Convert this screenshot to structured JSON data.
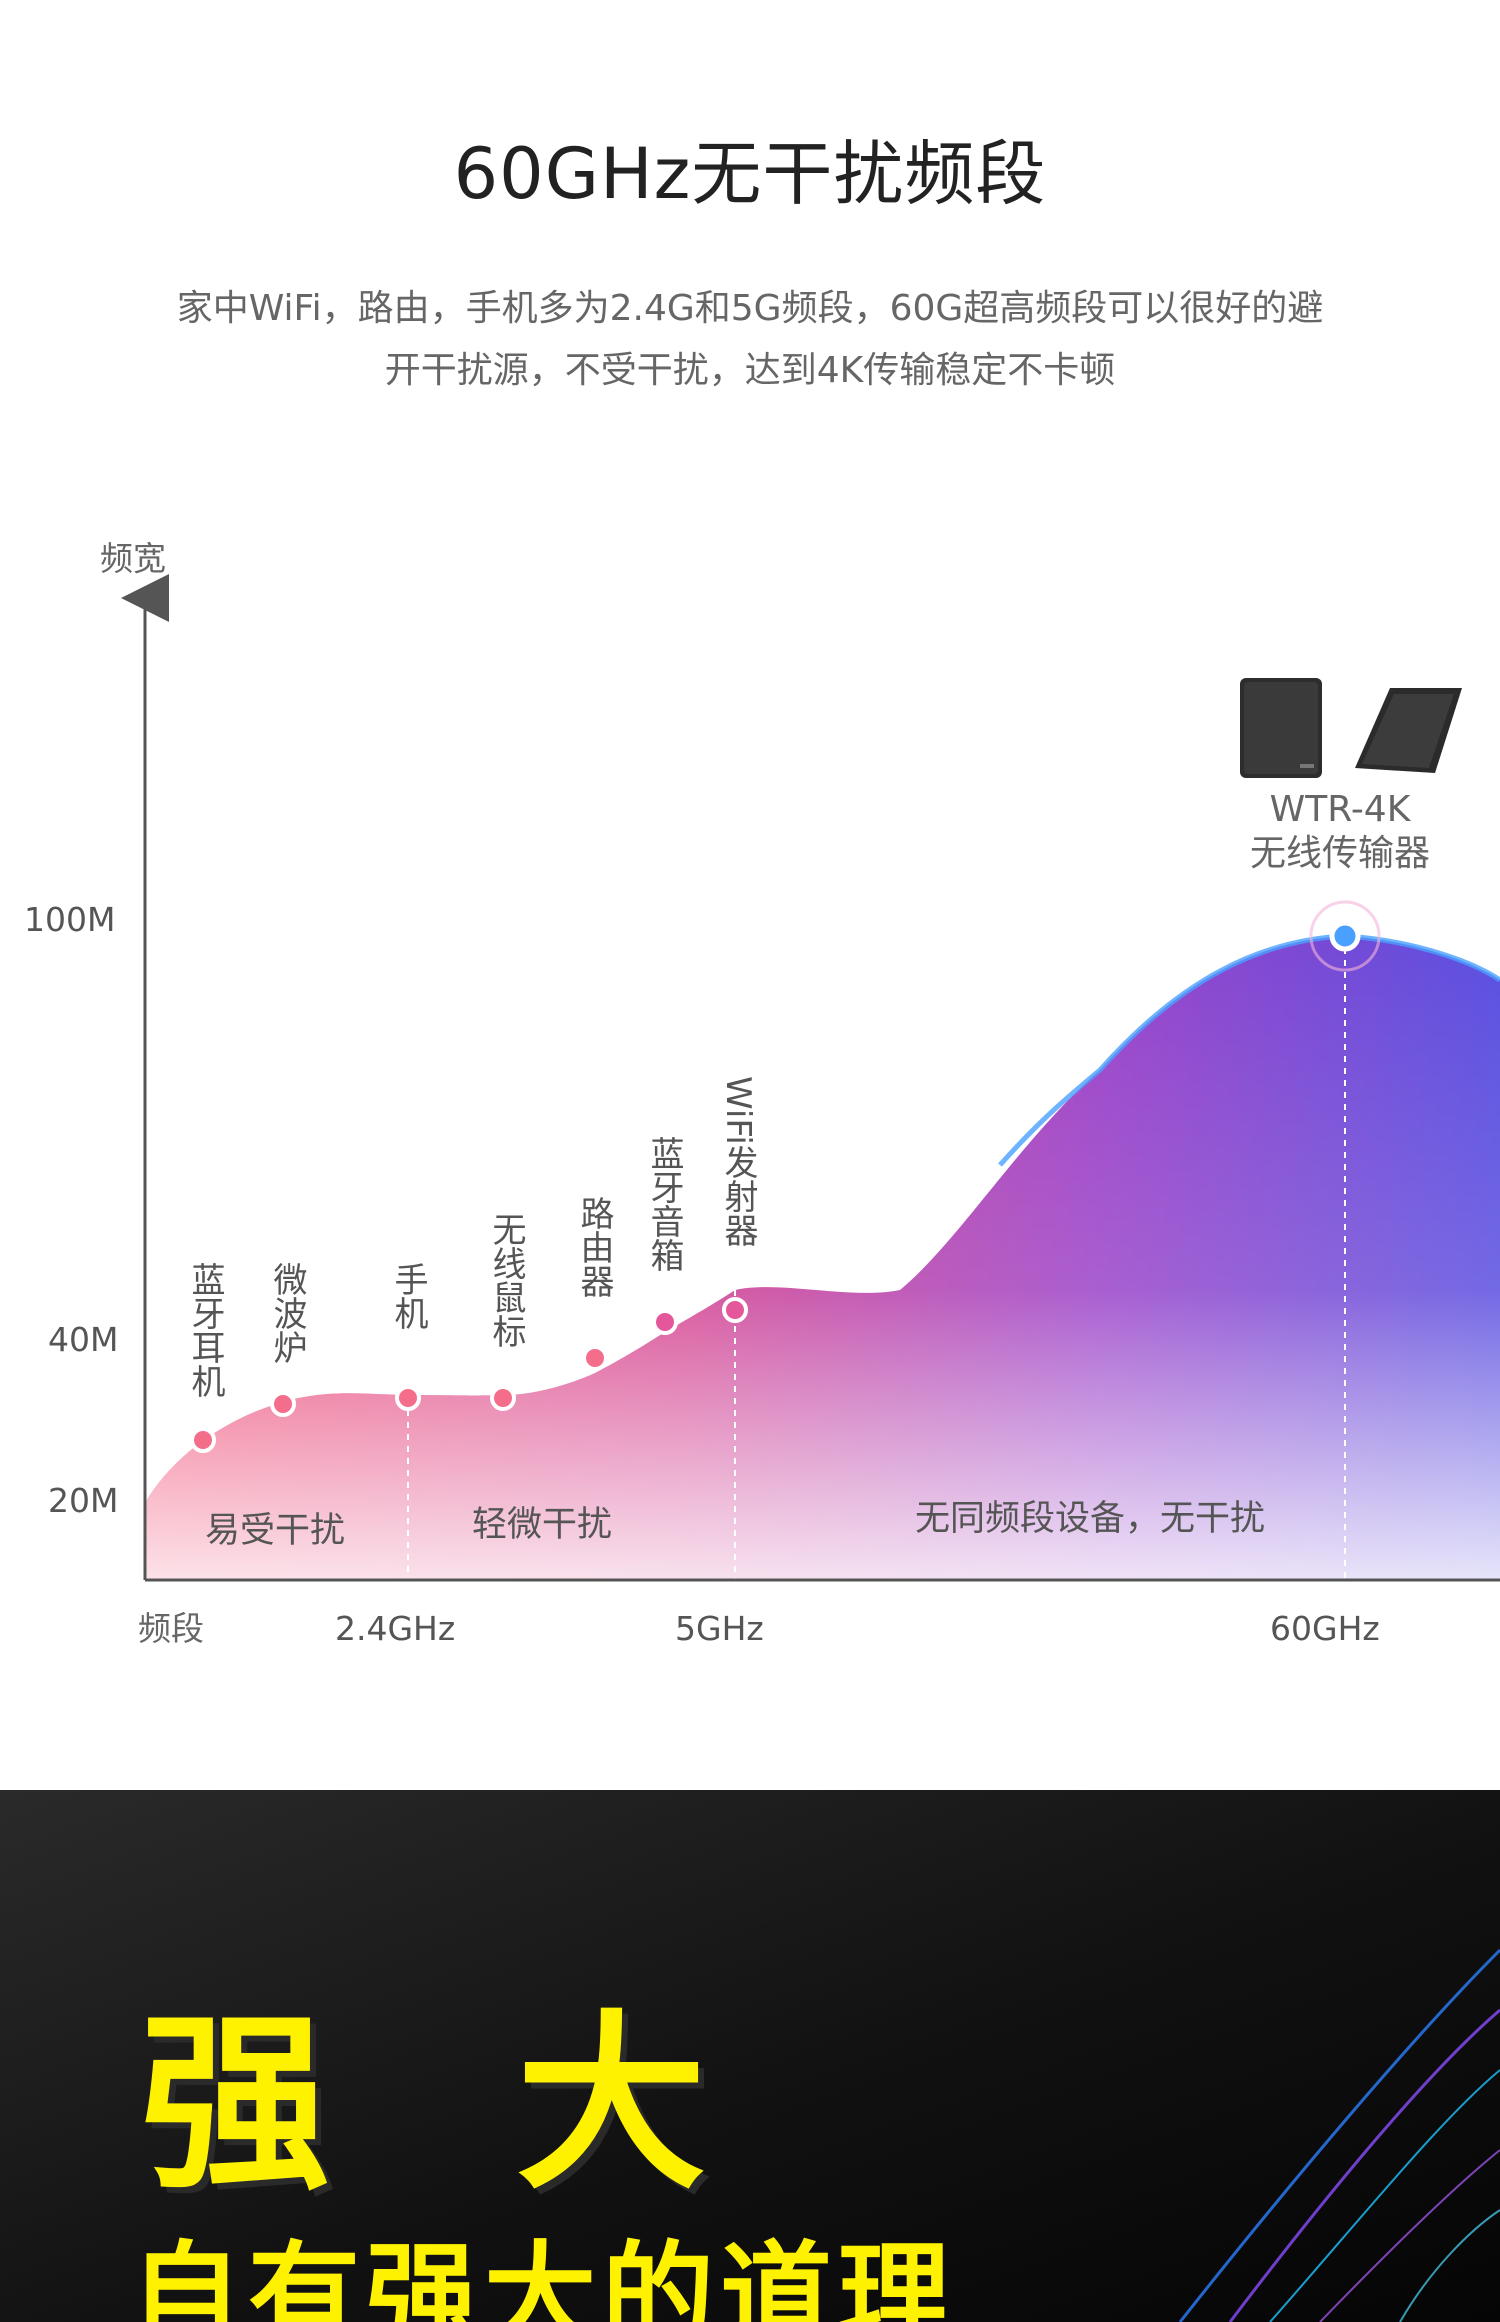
{
  "header": {
    "title": "60GHz无干扰频段",
    "subtitle_line1": "家中WiFi，路由，手机多为2.4G和5G频段，60G超高频段可以很好的避",
    "subtitle_line2": "开干扰源，不受干扰，达到4K传输稳定不卡顿"
  },
  "chart_data": {
    "type": "area",
    "title": "",
    "ylabel": "频宽",
    "xlabel": "频段",
    "y_ticks": [
      "100M",
      "40M",
      "20M"
    ],
    "x_ticks": [
      "2.4GHz",
      "5GHz",
      "60GHz"
    ],
    "points": [
      {
        "label": "蓝牙耳机"
      },
      {
        "label": "微波炉"
      },
      {
        "label": "手机"
      },
      {
        "label": "无线鼠标"
      },
      {
        "label": "路由器"
      },
      {
        "label": "蓝牙音箱"
      },
      {
        "label": "WiFi发射器"
      }
    ],
    "zones": [
      "易受干扰",
      "轻微干扰",
      "无同频段设备，无干扰"
    ],
    "device": {
      "name": "WTR-4K",
      "desc": "无线传输器"
    },
    "colors": {
      "low": "#f0426a",
      "mid": "#c43a9a",
      "high": "#6a4ee0",
      "line": "#4a90e2"
    }
  },
  "banner": {
    "title": "强 大",
    "subtitle": "自有强大的道理"
  }
}
